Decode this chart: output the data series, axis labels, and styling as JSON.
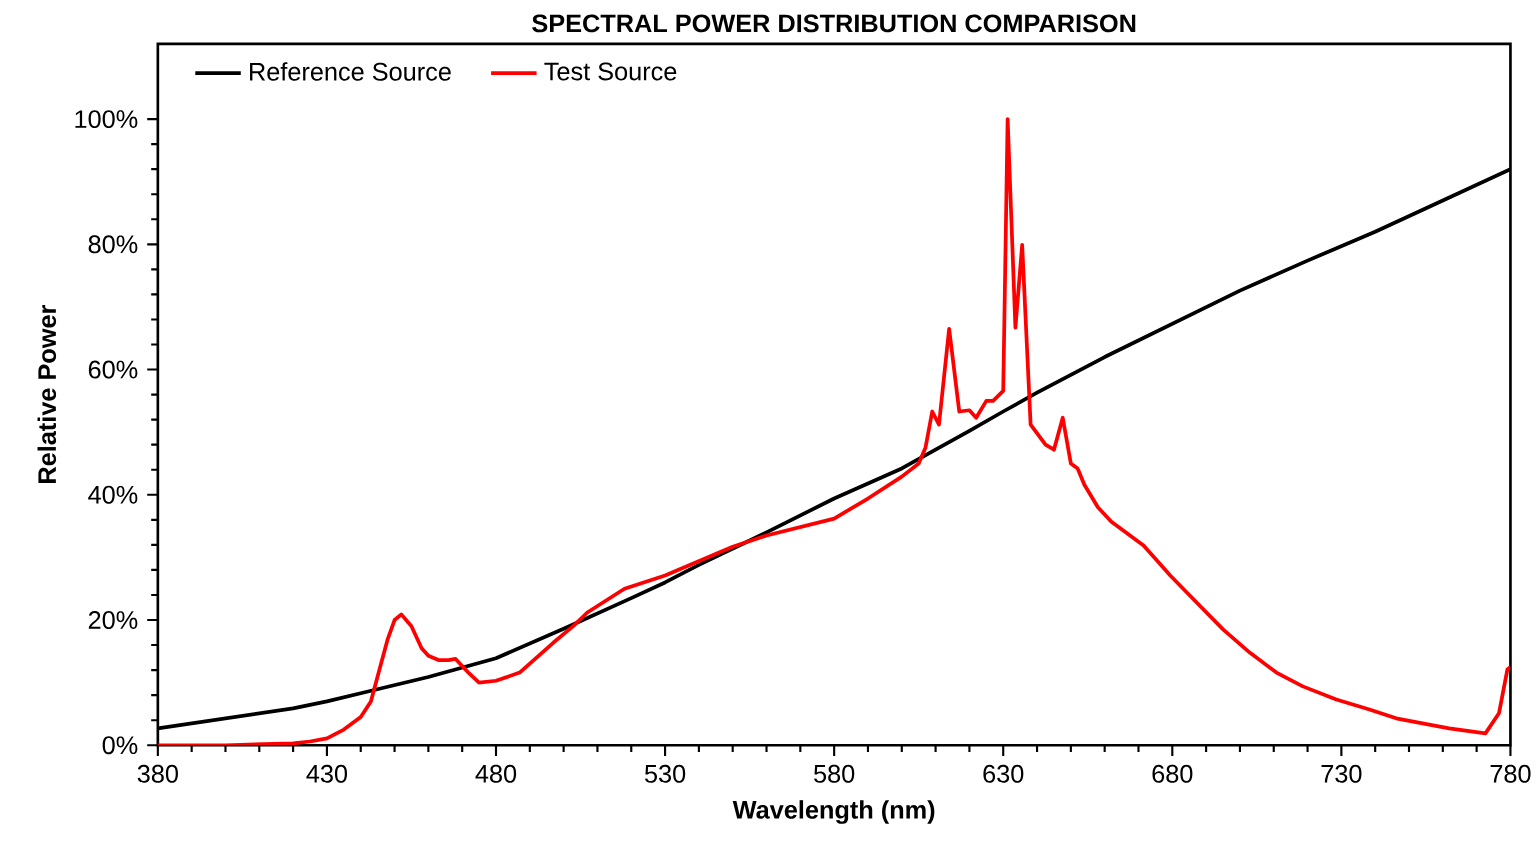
{
  "chart_data": {
    "type": "line",
    "title": "SPECTRAL POWER DISTRIBUTION COMPARISON",
    "xlabel": "Wavelength (nm)",
    "ylabel": "Relative Power",
    "xlim": [
      380,
      780
    ],
    "xticks": [
      380,
      430,
      480,
      530,
      580,
      630,
      680,
      730,
      780
    ],
    "ylim": [
      0,
      112
    ],
    "yticks": [
      {
        "value": 0,
        "label": "0%"
      },
      {
        "value": 20,
        "label": "20%"
      },
      {
        "value": 40,
        "label": "40%"
      },
      {
        "value": 60,
        "label": "60%"
      },
      {
        "value": 80,
        "label": "80%"
      },
      {
        "value": 100,
        "label": "100%"
      }
    ],
    "grid": false,
    "legend": "top left",
    "marker": "none",
    "line_style": "solid",
    "series": [
      {
        "name": "Reference Source",
        "color": "#000000",
        "x": [
          380,
          400,
          420,
          430,
          440,
          460,
          480,
          500,
          520,
          530,
          540,
          560,
          580,
          600,
          620,
          630,
          640,
          660,
          680,
          700,
          720,
          740,
          760,
          780
        ],
        "values": [
          2.7,
          4.3,
          5.9,
          7.0,
          8.3,
          10.9,
          13.9,
          18.6,
          23.5,
          26.0,
          28.8,
          34.0,
          39.4,
          44.2,
          50.2,
          53.3,
          56.3,
          62.0,
          67.3,
          72.6,
          77.4,
          82.0,
          87.0,
          92.0
        ]
      },
      {
        "name": "Test Source",
        "color": "#ff0000",
        "x": [
          380,
          400,
          420,
          425,
          430,
          435,
          440,
          443,
          445,
          448,
          450,
          452,
          455,
          458,
          460,
          463,
          466,
          468,
          472,
          475,
          480,
          487,
          497,
          503,
          507,
          518,
          530,
          550,
          560,
          580,
          590,
          600,
          605,
          607,
          609,
          611,
          614,
          617,
          620,
          622,
          625,
          627,
          630,
          631.3,
          633.6,
          635.6,
          638.1,
          642.5,
          645,
          647.6,
          650,
          652,
          654,
          658,
          662,
          665,
          671.5,
          675,
          679.4,
          687.2,
          695,
          702.9,
          710.8,
          718.6,
          728.5,
          738.3,
          746.2,
          754,
          761.9,
          772.6,
          776.6,
          779.1,
          780
        ],
        "values": [
          0,
          0,
          0.3,
          0.6,
          1.1,
          2.5,
          4.5,
          7,
          11,
          17,
          20,
          20.9,
          19,
          15.5,
          14.3,
          13.6,
          13.6,
          13.8,
          11.5,
          10,
          10.3,
          11.6,
          16.4,
          19.1,
          21.2,
          25,
          27.1,
          31.7,
          33.5,
          36.2,
          39.4,
          42.9,
          45,
          47.5,
          53.3,
          51.2,
          66.5,
          53.3,
          53.5,
          52.3,
          55,
          55,
          56.6,
          100,
          66.7,
          79.9,
          51.2,
          48,
          47.2,
          52.3,
          45,
          44.2,
          41.6,
          38,
          35.7,
          34.5,
          31.9,
          29.8,
          27.1,
          22.8,
          18.5,
          14.8,
          11.6,
          9.4,
          7.3,
          5.7,
          4.3,
          3.5,
          2.7,
          1.9,
          5.1,
          12.1,
          12.5
        ]
      }
    ]
  }
}
